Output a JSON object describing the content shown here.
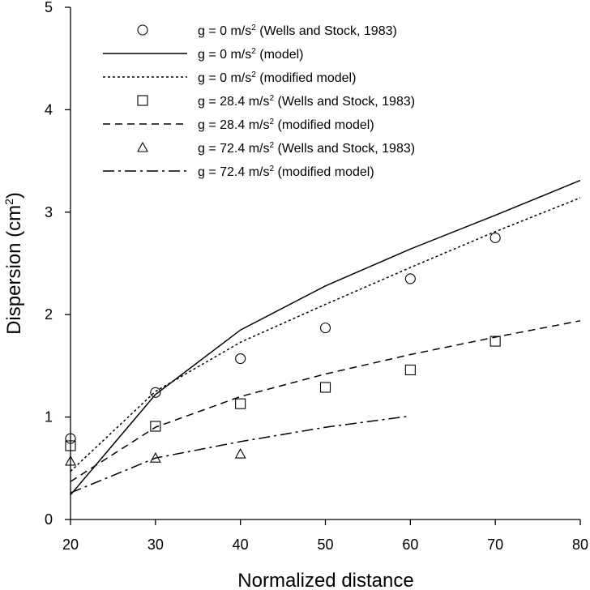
{
  "chart_data": {
    "type": "line",
    "title": "",
    "xlabel": "Normalized distance",
    "ylabel_prefix": "Dispersion (cm",
    "ylabel_sup": "2",
    "ylabel_suffix": ")",
    "xlim": [
      20,
      80
    ],
    "ylim": [
      0,
      5
    ],
    "xticks": [
      20,
      30,
      40,
      50,
      60,
      70,
      80
    ],
    "yticks": [
      0,
      1,
      2,
      3,
      4,
      5
    ],
    "grid": false,
    "legend_position": "top",
    "series": [
      {
        "id": "g0-data",
        "kind": "scatter",
        "marker": "circle",
        "label_prefix": "g = 0 m/s",
        "label_sup": "2",
        "label_suffix": " (Wells and Stock, 1983)",
        "x": [
          20,
          30,
          40,
          50,
          60,
          70
        ],
        "y": [
          0.79,
          1.24,
          1.57,
          1.87,
          2.35,
          2.75
        ]
      },
      {
        "id": "g0-model",
        "kind": "line",
        "dash": "solid",
        "label_prefix": "g = 0 m/s",
        "label_sup": "2",
        "label_suffix": " (model)",
        "x": [
          20,
          30,
          40,
          50,
          60,
          70,
          80
        ],
        "y": [
          0.24,
          1.22,
          1.85,
          2.28,
          2.64,
          2.97,
          3.31
        ]
      },
      {
        "id": "g0-modified",
        "kind": "line",
        "dash": "dotted",
        "label_prefix": "g = 0 m/s",
        "label_sup": "2",
        "label_suffix": " (modified model)",
        "x": [
          20,
          30,
          40,
          50,
          60,
          70,
          80
        ],
        "y": [
          0.47,
          1.25,
          1.73,
          2.1,
          2.46,
          2.81,
          3.14
        ]
      },
      {
        "id": "g28-data",
        "kind": "scatter",
        "marker": "square",
        "label_prefix": "g = 28.4 m/s",
        "label_sup": "2",
        "label_suffix": " (Wells and Stock, 1983)",
        "x": [
          20,
          30,
          40,
          50,
          60,
          70
        ],
        "y": [
          0.72,
          0.91,
          1.13,
          1.29,
          1.46,
          1.74
        ]
      },
      {
        "id": "g28-modified",
        "kind": "line",
        "dash": "dashed",
        "label_prefix": "g = 28.4 m/s",
        "label_sup": "2",
        "label_suffix": " (modified model)",
        "x": [
          20,
          30,
          40,
          50,
          60,
          70,
          80
        ],
        "y": [
          0.37,
          0.9,
          1.2,
          1.42,
          1.61,
          1.78,
          1.94
        ]
      },
      {
        "id": "g72-data",
        "kind": "scatter",
        "marker": "triangle",
        "label_prefix": "g = 72.4 m/s",
        "label_sup": "2",
        "label_suffix": " (Wells and Stock, 1983)",
        "x": [
          20,
          30,
          40
        ],
        "y": [
          0.57,
          0.6,
          0.64
        ]
      },
      {
        "id": "g72-modified",
        "kind": "line",
        "dash": "dashdot",
        "label_prefix": "g = 72.4 m/s",
        "label_sup": "2",
        "label_suffix": " (modified model)",
        "x": [
          20,
          30,
          40,
          50,
          60
        ],
        "y": [
          0.26,
          0.6,
          0.76,
          0.9,
          1.01
        ]
      }
    ]
  },
  "colors": {
    "line": "#000000",
    "background": "#ffffff"
  }
}
